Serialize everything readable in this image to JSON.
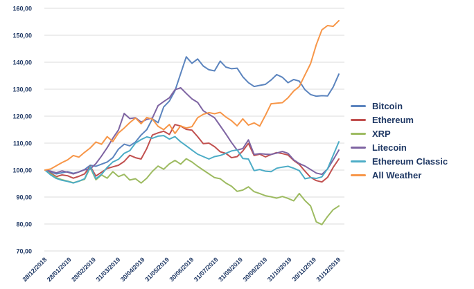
{
  "chart_data": {
    "type": "line",
    "title": "",
    "grid": "horizontal",
    "grid_color": "#DBDBDB",
    "axis_text_color": "#1F3864",
    "legend_position": "right",
    "y_axis": {
      "min": 70,
      "max": 160,
      "step": 10,
      "tick_labels": [
        "160,00",
        "150,00",
        "140,00",
        "130,00",
        "120,00",
        "110,00",
        "100,00",
        "90,00",
        "80,00",
        "70,00"
      ]
    },
    "x_axis": {
      "tick_labels": [
        "28/12/2018",
        "28/01/2019",
        "28/02/2019",
        "31/03/2019",
        "30/04/2019",
        "31/05/2019",
        "30/06/2019",
        "31/07/2019",
        "31/08/2019",
        "30/09/2019",
        "31/10/2019",
        "30/11/2019",
        "31/12/2019"
      ]
    },
    "series": [
      {
        "id": "bitcoin",
        "name": "Bitcoin",
        "color": "#5B84BE",
        "values": [
          100,
          99.2,
          98.6,
          99.0,
          99.4,
          98.8,
          99.3,
          100.2,
          101.8,
          101.4,
          102.2,
          103.0,
          104.6,
          107.8,
          109.6,
          109.0,
          110.4,
          113.0,
          115.0,
          119.0,
          117.6,
          123.4,
          125.6,
          129.4,
          135.8,
          142.0,
          139.6,
          141.2,
          138.6,
          137.2,
          136.8,
          140.4,
          138.2,
          137.6,
          137.8,
          134.6,
          132.4,
          131.0,
          131.4,
          131.8,
          133.4,
          135.4,
          134.4,
          132.4,
          133.6,
          133.0,
          129.8,
          128.0,
          127.4,
          127.6,
          127.5,
          130.8,
          135.6
        ]
      },
      {
        "id": "ethereum",
        "name": "Ethereum",
        "color": "#C1504F",
        "values": [
          100,
          98.8,
          97.6,
          98.2,
          97.9,
          97.0,
          97.7,
          98.6,
          101.5,
          97.8,
          99.2,
          100.6,
          101.2,
          101.8,
          103.2,
          105.5,
          104.6,
          104.1,
          108.0,
          113.0,
          113.8,
          114.4,
          113.2,
          116.9,
          116.3,
          115.1,
          114.8,
          112.4,
          109.8,
          110.0,
          108.7,
          106.8,
          106.2,
          104.6,
          105.0,
          107.1,
          109.9,
          105.4,
          105.9,
          104.9,
          105.8,
          106.5,
          106.1,
          105.6,
          103.6,
          102.1,
          99.6,
          97.3,
          96.1,
          95.6,
          97.3,
          101.0,
          104.1
        ]
      },
      {
        "id": "xrp",
        "name": "XRP",
        "color": "#9DBB61",
        "values": [
          100,
          98.5,
          97.2,
          96.4,
          95.9,
          95.3,
          95.9,
          96.6,
          101.0,
          96.4,
          98.2,
          97.0,
          99.4,
          97.6,
          98.4,
          96.3,
          96.8,
          95.2,
          97.0,
          99.5,
          101.5,
          100.3,
          102.3,
          103.6,
          102.2,
          104.2,
          103.0,
          101.4,
          100.0,
          98.6,
          97.2,
          96.8,
          95.2,
          94.0,
          92.1,
          92.6,
          93.8,
          92.0,
          91.3,
          90.5,
          90.1,
          89.6,
          90.2,
          89.5,
          88.6,
          91.3,
          88.7,
          86.7,
          80.8,
          79.8,
          82.8,
          85.3,
          86.7
        ]
      },
      {
        "id": "litecoin",
        "name": "Litecoin",
        "color": "#7E64A2",
        "values": [
          100,
          99.6,
          99.0,
          99.7,
          99.2,
          98.6,
          99.3,
          100.1,
          100.4,
          102.4,
          105.2,
          108.3,
          111.8,
          114.9,
          121.0,
          119.1,
          119.4,
          117.8,
          118.8,
          119.3,
          123.9,
          125.4,
          126.8,
          129.8,
          130.5,
          128.4,
          126.4,
          125.1,
          122.0,
          120.7,
          119.4,
          116.4,
          113.4,
          110.2,
          107.4,
          108.0,
          111.2,
          105.8,
          106.1,
          105.9,
          105.8,
          106.3,
          106.9,
          106.2,
          103.8,
          102.4,
          101.5,
          100.2,
          98.9,
          98.4,
          100.4,
          103.8,
          107.4
        ]
      },
      {
        "id": "ethereum-classic",
        "name": "Ethereum Classic",
        "color": "#4CACC6",
        "values": [
          100,
          98.2,
          96.9,
          96.2,
          95.8,
          95.2,
          95.9,
          96.8,
          101.3,
          96.8,
          98.4,
          101.0,
          103.0,
          104.0,
          106.2,
          107.2,
          110.0,
          111.3,
          112.3,
          111.8,
          112.6,
          112.8,
          111.5,
          112.4,
          110.5,
          109.0,
          107.4,
          105.9,
          105.0,
          104.1,
          105.0,
          105.4,
          106.2,
          107.1,
          107.5,
          104.3,
          104.1,
          99.8,
          100.2,
          99.6,
          99.4,
          100.7,
          101.1,
          101.4,
          100.7,
          99.8,
          96.8,
          97.2,
          96.9,
          97.5,
          100.5,
          105.5,
          110.5
        ]
      },
      {
        "id": "all-weather",
        "name": "All Weather",
        "color": "#F79648",
        "values": [
          100,
          100.4,
          101.6,
          102.8,
          103.8,
          105.4,
          104.8,
          106.6,
          108.2,
          110.4,
          109.6,
          112.4,
          110.6,
          113.8,
          115.6,
          117.6,
          119.3,
          117.2,
          119.5,
          118.9,
          116.2,
          115.0,
          116.9,
          113.6,
          116.4,
          115.6,
          116.1,
          119.4,
          120.7,
          121.3,
          120.9,
          121.4,
          119.7,
          118.3,
          116.4,
          119.0,
          116.7,
          117.5,
          116.3,
          120.3,
          124.6,
          124.8,
          125.0,
          126.8,
          129.3,
          131.0,
          135.3,
          139.5,
          146.5,
          152.0,
          153.6,
          153.3,
          155.4
        ]
      }
    ]
  }
}
